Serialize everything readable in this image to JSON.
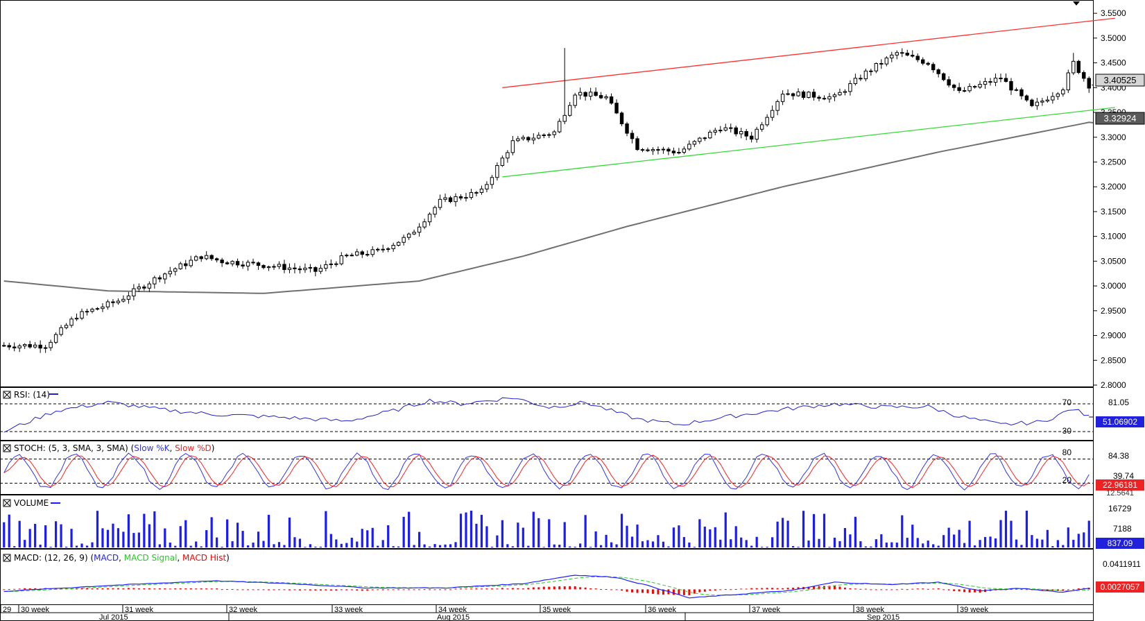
{
  "chart_data": {
    "type": "candlestick",
    "symbol_panel": {
      "y_ticks": [
        "3.5500",
        "3.5000",
        "3.4500",
        "3.4000",
        "3.3500",
        "3.3000",
        "3.2500",
        "3.2000",
        "3.1500",
        "3.1000",
        "3.0500",
        "3.0000",
        "2.9500",
        "2.9000",
        "2.8500",
        "2.8000"
      ],
      "y_values": [
        3.55,
        3.5,
        3.45,
        3.4,
        3.35,
        3.3,
        3.25,
        3.2,
        3.15,
        3.1,
        3.05,
        3.0,
        2.95,
        2.9,
        2.85,
        2.8
      ],
      "ylim": [
        2.8,
        3.56
      ],
      "last_price_label": "3.40525",
      "last_price": 3.40525,
      "ma_label": "3.32924",
      "ma_value": 3.32924,
      "candle_count": 210,
      "price_path": [
        [
          0,
          2.88
        ],
        [
          8,
          2.88
        ],
        [
          14,
          2.94
        ],
        [
          22,
          2.97
        ],
        [
          30,
          3.02
        ],
        [
          38,
          3.06
        ],
        [
          42,
          3.05
        ],
        [
          52,
          3.04
        ],
        [
          60,
          3.03
        ],
        [
          66,
          3.06
        ],
        [
          72,
          3.07
        ],
        [
          78,
          3.1
        ],
        [
          84,
          3.17
        ],
        [
          92,
          3.19
        ],
        [
          98,
          3.29
        ],
        [
          106,
          3.31
        ],
        [
          110,
          3.39
        ],
        [
          116,
          3.38
        ],
        [
          122,
          3.28
        ],
        [
          130,
          3.27
        ],
        [
          138,
          3.32
        ],
        [
          144,
          3.3
        ],
        [
          150,
          3.39
        ],
        [
          160,
          3.38
        ],
        [
          166,
          3.43
        ],
        [
          172,
          3.47
        ],
        [
          178,
          3.45
        ],
        [
          184,
          3.39
        ],
        [
          192,
          3.42
        ],
        [
          198,
          3.36
        ],
        [
          204,
          3.4
        ],
        [
          206,
          3.45
        ],
        [
          209,
          3.405
        ]
      ],
      "spikes": [
        [
          108,
          3.48
        ],
        [
          206,
          3.47
        ]
      ],
      "moving_average": [
        [
          0,
          3.01
        ],
        [
          20,
          2.99
        ],
        [
          50,
          2.985
        ],
        [
          80,
          3.01
        ],
        [
          100,
          3.06
        ],
        [
          120,
          3.12
        ],
        [
          150,
          3.2
        ],
        [
          180,
          3.27
        ],
        [
          209,
          3.33
        ]
      ],
      "resistance_line": {
        "from": [
          96,
          3.4
        ],
        "to": [
          214,
          3.54
        ],
        "color": "#ff3030"
      },
      "support_line": {
        "from": [
          96,
          3.22
        ],
        "to": [
          214,
          3.36
        ],
        "color": "#33dd33"
      }
    },
    "rsi": {
      "title": "RSI: (14)",
      "levels": [
        "70",
        "30"
      ],
      "level_values": [
        70,
        30
      ],
      "max_label": "81.05",
      "value_label": "51.06902",
      "ylim": [
        20,
        90
      ],
      "path": [
        [
          0,
          30
        ],
        [
          10,
          60
        ],
        [
          20,
          72
        ],
        [
          30,
          62
        ],
        [
          40,
          55
        ],
        [
          55,
          50
        ],
        [
          66,
          45
        ],
        [
          75,
          60
        ],
        [
          82,
          75
        ],
        [
          88,
          70
        ],
        [
          98,
          79
        ],
        [
          105,
          65
        ],
        [
          112,
          72
        ],
        [
          122,
          48
        ],
        [
          130,
          40
        ],
        [
          140,
          52
        ],
        [
          150,
          62
        ],
        [
          160,
          70
        ],
        [
          170,
          65
        ],
        [
          178,
          66
        ],
        [
          184,
          52
        ],
        [
          192,
          40
        ],
        [
          200,
          44
        ],
        [
          206,
          63
        ],
        [
          209,
          51
        ]
      ]
    },
    "stoch": {
      "title": "STOCH: (5, 3, SMA, 3, SMA)",
      "legend": [
        "Slow %K",
        "Slow %D"
      ],
      "levels": [
        "80",
        "20"
      ],
      "level_values": [
        80,
        20
      ],
      "labels": [
        "84.38",
        "39.74",
        "22.96181",
        "12.5641"
      ],
      "ylim": [
        0,
        100
      ],
      "period": 11
    },
    "volume": {
      "title": "VOLUME",
      "labels": [
        "16729",
        "7188",
        "837.09"
      ],
      "ylim": [
        0,
        20000
      ]
    },
    "macd": {
      "title": "MACD: (12, 26, 9)",
      "legend": [
        "MACD",
        "MACD Signal",
        "MACD Hist"
      ],
      "labels": [
        "0.0411911",
        "0.0027057"
      ],
      "ylim": [
        -0.03,
        0.05
      ]
    },
    "x_axis": {
      "weeks": [
        "29",
        "30 week",
        "31 week",
        "32 week",
        "33 week",
        "34 week",
        "35 week",
        "36 week",
        "37 week",
        "38 week",
        "39 week"
      ],
      "months": [
        "Jul 2015",
        "Aug 2015",
        "Sep 2015"
      ]
    },
    "colors": {
      "rsi": "#2020cc",
      "stoch_k": "#3030ff",
      "stoch_d": "#ff2020",
      "volume": "#1a1aff",
      "macd": "#2020ff",
      "signal": "#22cc22",
      "hist": "#ff0000",
      "ma": "#707070",
      "candle": "#000000"
    }
  }
}
